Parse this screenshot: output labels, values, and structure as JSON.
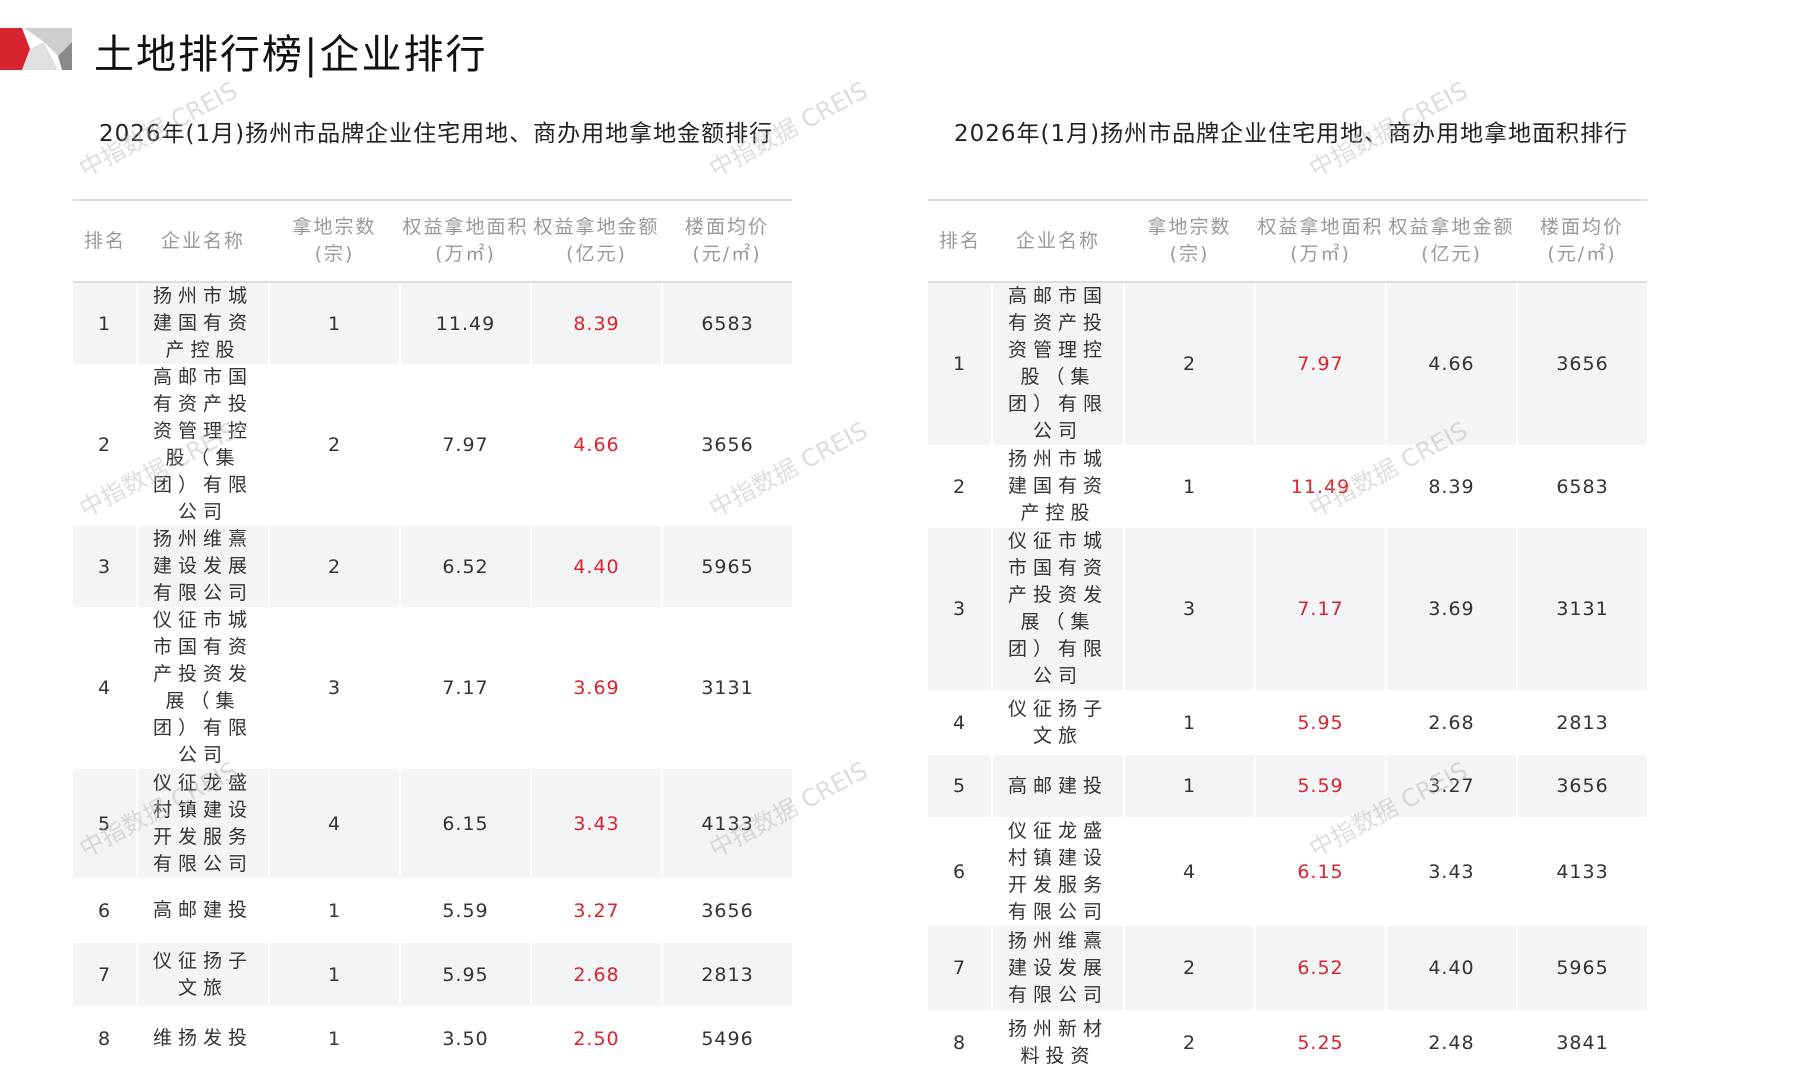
{
  "page_title": "土地排行榜|企业排行",
  "watermark": "中指数据 CREIS",
  "colors": {
    "accent_red": "#d9232d",
    "logo_gray": "#bdbdbd"
  },
  "columns": [
    "排名",
    "企业名称",
    "拿地宗数\n(宗)",
    "权益拿地面积\n(万㎡)",
    "权益拿地金额\n(亿元)",
    "楼面均价\n(元/㎡)"
  ],
  "left_table": {
    "title": "2026年(1月)扬州市品牌企业住宅用地、商办用地拿地金额排行",
    "rows": [
      [
        "1",
        "扬州市城建国有资产控股",
        "1",
        "11.49",
        "8.39",
        "6583"
      ],
      [
        "2",
        "高邮市国有资产投资管理控股（集团）有限公司",
        "2",
        "7.97",
        "4.66",
        "3656"
      ],
      [
        "3",
        "扬州维熹建设发展有限公司",
        "2",
        "6.52",
        "4.40",
        "5965"
      ],
      [
        "4",
        "仪征市城市国有资产投资发展（集团）有限公司",
        "3",
        "7.17",
        "3.69",
        "3131"
      ],
      [
        "5",
        "仪征龙盛村镇建设开发服务有限公司",
        "4",
        "6.15",
        "3.43",
        "4133"
      ],
      [
        "6",
        "高邮建投",
        "1",
        "5.59",
        "3.27",
        "3656"
      ],
      [
        "7",
        "仪征扬子文旅",
        "1",
        "5.95",
        "2.68",
        "2813"
      ],
      [
        "8",
        "维扬发投",
        "1",
        "3.50",
        "2.50",
        "5496"
      ]
    ]
  },
  "right_table": {
    "title": "2026年(1月)扬州市品牌企业住宅用地、商办用地拿地面积排行",
    "rows": [
      [
        "1",
        "高邮市国有资产投资管理控股（集团）有限公司",
        "2",
        "7.97",
        "4.66",
        "3656"
      ],
      [
        "2",
        "扬州市城建国有资产控股",
        "1",
        "11.49",
        "8.39",
        "6583"
      ],
      [
        "3",
        "仪征市城市国有资产投资发展（集团）有限公司",
        "3",
        "7.17",
        "3.69",
        "3131"
      ],
      [
        "4",
        "仪征扬子文旅",
        "1",
        "5.95",
        "2.68",
        "2813"
      ],
      [
        "5",
        "高邮建投",
        "1",
        "5.59",
        "3.27",
        "3656"
      ],
      [
        "6",
        "仪征龙盛村镇建设开发服务有限公司",
        "4",
        "6.15",
        "3.43",
        "4133"
      ],
      [
        "7",
        "扬州维熹建设发展有限公司",
        "2",
        "6.52",
        "4.40",
        "5965"
      ],
      [
        "8",
        "扬州新材料投资",
        "2",
        "5.25",
        "2.48",
        "3841"
      ]
    ]
  }
}
